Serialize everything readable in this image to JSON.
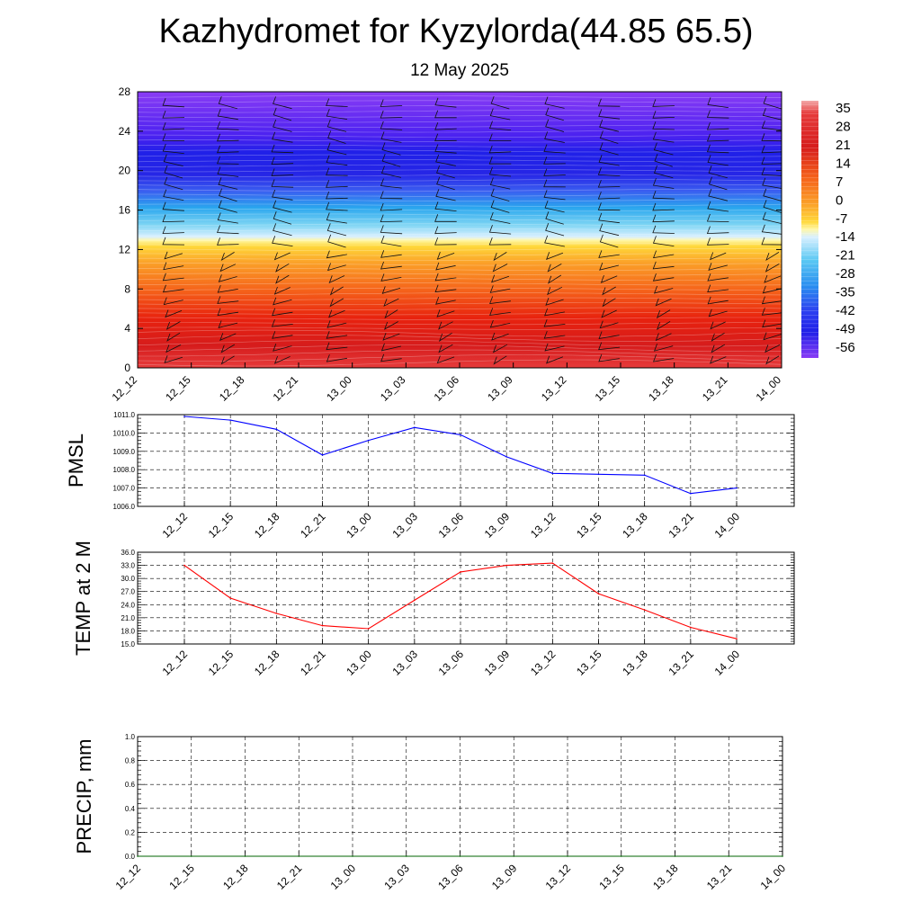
{
  "header": {
    "title": "Kazhydromet for Kyzylorda(44.85 65.5)",
    "subtitle": "12 May 2025"
  },
  "chart_data": [
    {
      "type": "heatmap",
      "panel": "cross-section",
      "xlabel": "",
      "ylabel": "",
      "x_ticks": [
        "12_12",
        "12_15",
        "12_18",
        "12_21",
        "13_00",
        "13_03",
        "13_06",
        "13_09",
        "13_12",
        "13_15",
        "13_18",
        "13_21",
        "14_00"
      ],
      "y_ticks": [
        0,
        4,
        8,
        12,
        16,
        20,
        24,
        28
      ],
      "ylim": [
        0,
        28
      ],
      "levels_profile": [
        {
          "y": 0,
          "value": 30
        },
        {
          "y": 3,
          "value": 24
        },
        {
          "y": 6,
          "value": 17
        },
        {
          "y": 9,
          "value": 8
        },
        {
          "y": 12,
          "value": -4
        },
        {
          "y": 13.3,
          "value": -16
        },
        {
          "y": 16,
          "value": -32
        },
        {
          "y": 19,
          "value": -54
        },
        {
          "y": 22,
          "value": -60
        },
        {
          "y": 28,
          "value": -57
        }
      ],
      "wind_barbs": true,
      "colorbar": {
        "labels": [
          "35",
          "28",
          "21",
          "14",
          "7",
          "0",
          "-7",
          "-14",
          "-21",
          "-28",
          "-35",
          "-42",
          "-49",
          "-56"
        ],
        "values": [
          35,
          28,
          21,
          14,
          7,
          0,
          -7,
          -14,
          -21,
          -28,
          -35,
          -42,
          -49,
          -56
        ]
      }
    },
    {
      "type": "line",
      "panel": "pmsl",
      "ylabel": "PMSL",
      "categories": [
        "12_12",
        "12_15",
        "12_18",
        "12_21",
        "13_00",
        "13_03",
        "13_06",
        "13_09",
        "13_12",
        "13_15",
        "13_18",
        "13_21",
        "14_00"
      ],
      "values": [
        1010.9,
        1010.7,
        1010.2,
        1008.8,
        1009.6,
        1010.3,
        1009.9,
        1008.7,
        1007.8,
        1007.75,
        1007.7,
        1006.7,
        1007.0
      ],
      "ylim": [
        1006.0,
        1011.0
      ],
      "y_ticks": [
        "1006.0",
        "1007.0",
        "1008.0",
        "1009.0",
        "1010.0",
        "1011.0"
      ],
      "color": "#0000ff",
      "grid": true
    },
    {
      "type": "line",
      "panel": "temp",
      "ylabel": "TEMP at 2 M",
      "categories": [
        "12_12",
        "12_15",
        "12_18",
        "12_21",
        "13_00",
        "13_03",
        "13_06",
        "13_09",
        "13_12",
        "13_15",
        "13_18",
        "13_21",
        "14_00"
      ],
      "values": [
        33.0,
        25.5,
        22.0,
        19.2,
        18.5,
        25.0,
        31.5,
        33.0,
        33.5,
        26.5,
        22.8,
        18.8,
        16.2
      ],
      "ylim": [
        15.0,
        36.0
      ],
      "y_ticks": [
        "15.0",
        "18.0",
        "21.0",
        "24.0",
        "27.0",
        "30.0",
        "33.0",
        "36.0"
      ],
      "color": "#ff0000",
      "grid": true
    },
    {
      "type": "line",
      "panel": "precip",
      "ylabel": "PRECIP, mm",
      "categories": [
        "12_12",
        "12_15",
        "12_18",
        "12_21",
        "13_00",
        "13_03",
        "13_06",
        "13_09",
        "13_12",
        "13_15",
        "13_18",
        "13_21",
        "14_00"
      ],
      "values": [
        0,
        0,
        0,
        0,
        0,
        0,
        0,
        0,
        0,
        0,
        0,
        0,
        0
      ],
      "ylim": [
        0.0,
        1.0
      ],
      "y_ticks": [
        "0.0",
        "0.2",
        "0.4",
        "0.6",
        "0.8",
        "1.0"
      ],
      "color": "#006400",
      "grid": true
    }
  ]
}
